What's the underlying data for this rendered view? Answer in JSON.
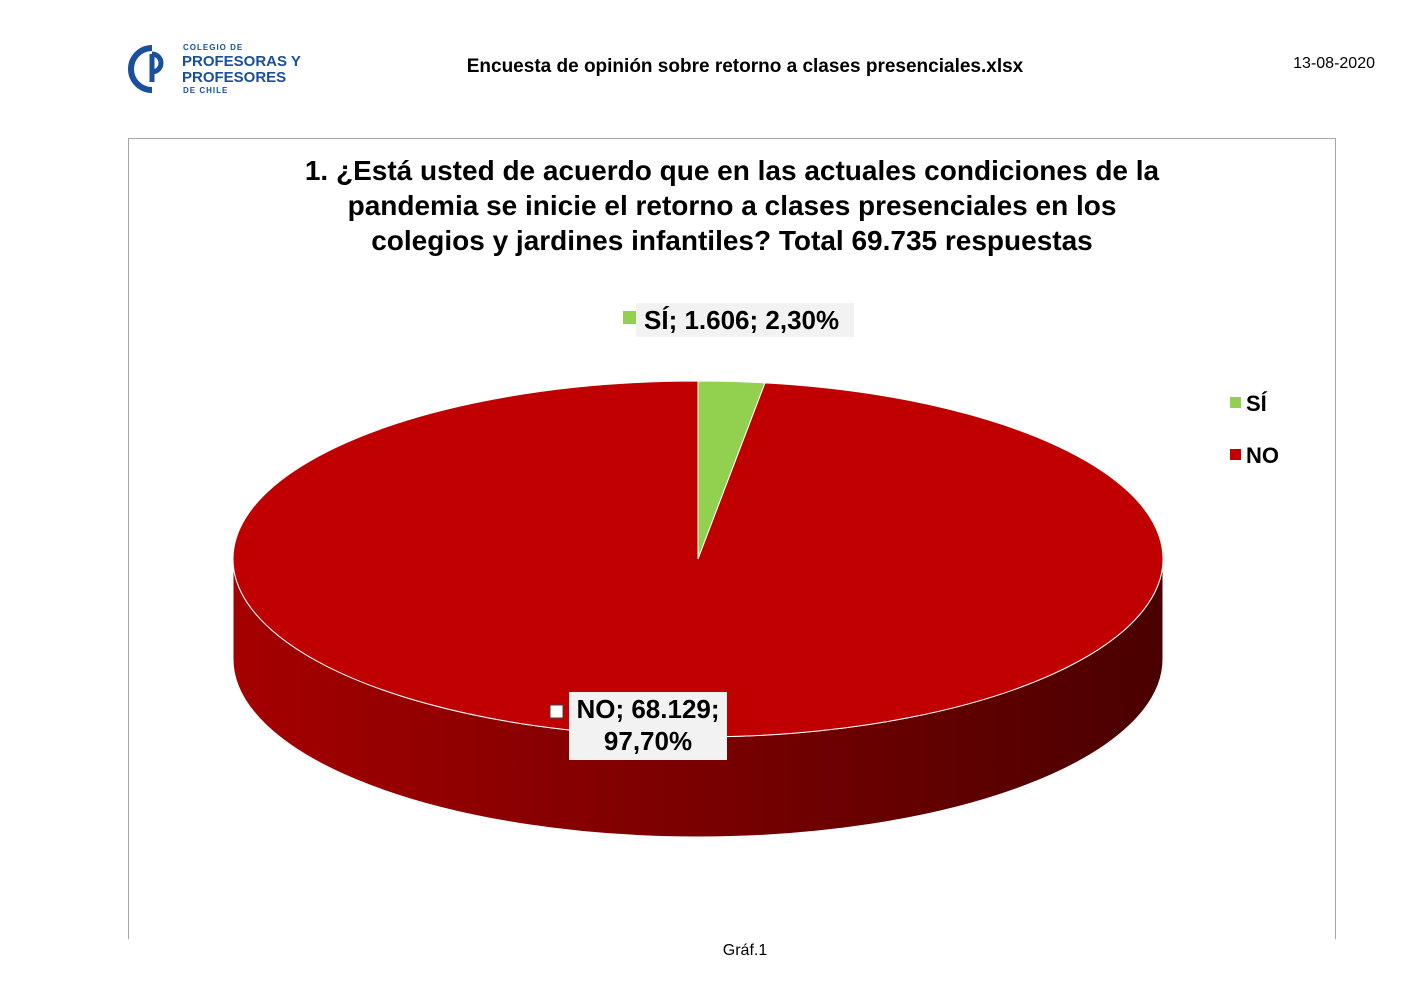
{
  "header": {
    "logo": {
      "line1": "COLEGIO DE",
      "line2": "PROFESORAS Y",
      "line3": "PROFESORES",
      "line4": "DE CHILE",
      "color": "#1a4f9c"
    },
    "title": "Encuesta de opinión sobre retorno a clases presenciales.xlsx",
    "date": "13-08-2020"
  },
  "chart_data": {
    "type": "pie",
    "style": "3d",
    "title_lines": [
      "1. ¿Está usted de acuerdo que en las actuales condiciones de la",
      "pandemia se inicie el retorno a clases presenciales en los",
      "colegios y jardines infantiles? Total 69.735 respuestas"
    ],
    "categories": [
      "SÍ",
      "NO"
    ],
    "values": [
      1606,
      68129
    ],
    "percent_values": [
      2.3,
      97.7
    ],
    "colors": [
      "#92d050",
      "#c00000"
    ],
    "data_labels": [
      {
        "lines": [
          "SÍ; 1.606; 2,30%"
        ]
      },
      {
        "lines": [
          "NO; 68.129;",
          "97,70%"
        ]
      }
    ],
    "legend": {
      "position": "right",
      "items": [
        {
          "label": "SÍ",
          "color": "#92d050"
        },
        {
          "label": "NO",
          "color": "#c00000"
        }
      ]
    }
  },
  "footer": {
    "caption": "Gráf.1"
  }
}
